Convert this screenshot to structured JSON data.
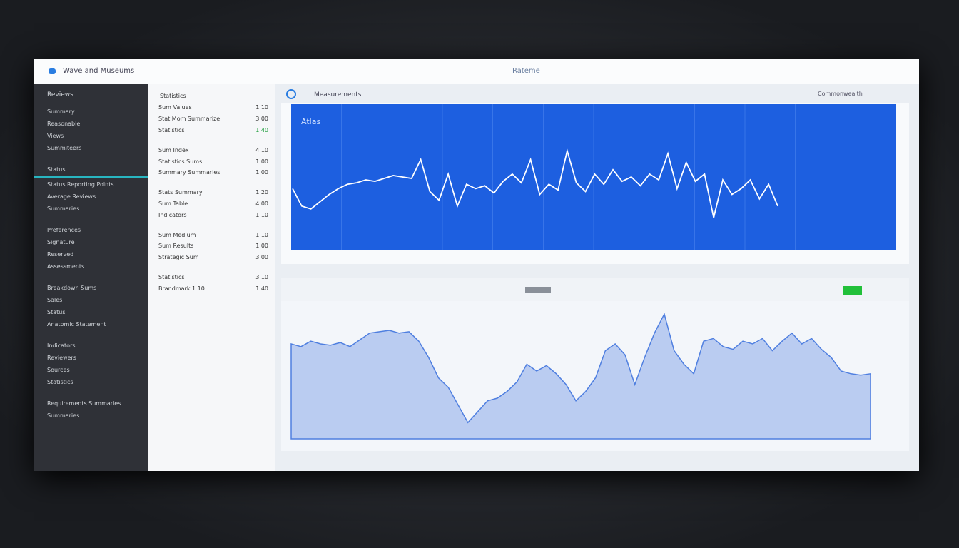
{
  "header": {
    "title": "Wave and Museums",
    "center": "Rateme"
  },
  "sidebar": {
    "heading": "Reviews",
    "items": [
      "Summary",
      "Reasonable",
      "Views",
      "Summiteers",
      "Status",
      "Status Reporting Points",
      "Average Reviews",
      "Summaries",
      "Preferences",
      "Signature",
      "Reserved",
      "Assessments",
      "Breakdown Sums",
      "Sales",
      "Status",
      "Anatomic Statement",
      "Indicators",
      "Reviewers",
      "Sources",
      "Statistics",
      "Requirements Summaries",
      "Summaries"
    ]
  },
  "list": {
    "heading": "Statistics",
    "rows": [
      [
        "Sum Values",
        "1.10"
      ],
      [
        "Stat Mom Summarize",
        "3.00"
      ],
      [
        "Statistics",
        "1.40"
      ],
      [
        "Sum Index",
        "4.10"
      ],
      [
        "Statistics Sums",
        "1.00"
      ],
      [
        "Summary Summaries",
        "1.00"
      ],
      [
        "Stats Summary",
        "1.20"
      ],
      [
        "Sum Table",
        "4.00"
      ],
      [
        "Indicators",
        "1.10"
      ],
      [
        "Sum Medium",
        "1.10"
      ],
      [
        "Sum Results",
        "1.00"
      ],
      [
        "Strategic Sum",
        "3.00"
      ],
      [
        "Statistics",
        "3.10"
      ],
      [
        "Brandmark 1.10",
        "1.40"
      ]
    ]
  },
  "main": {
    "title": "Measurements",
    "right_label": "Commonwealth"
  },
  "chart_data": [
    {
      "type": "line",
      "title": "Atlas",
      "color": "#ffffff",
      "ylim": [
        0,
        100
      ],
      "values": [
        42,
        30,
        28,
        33,
        38,
        42,
        45,
        46,
        48,
        47,
        49,
        51,
        50,
        49,
        62,
        40,
        34,
        52,
        30,
        45,
        42,
        44,
        39,
        47,
        52,
        46,
        62,
        38,
        45,
        41,
        68,
        46,
        40,
        52,
        45,
        55,
        47,
        50,
        44,
        52,
        48,
        66,
        42,
        60,
        47,
        52,
        22,
        48,
        38,
        42,
        48,
        35,
        45,
        30
      ]
    },
    {
      "type": "area",
      "color": "#4f7fe0",
      "ylim": [
        0,
        100
      ],
      "values": [
        70,
        68,
        72,
        70,
        69,
        71,
        68,
        73,
        78,
        79,
        80,
        78,
        79,
        72,
        60,
        45,
        38,
        25,
        12,
        20,
        28,
        30,
        35,
        42,
        55,
        50,
        54,
        48,
        40,
        28,
        35,
        45,
        65,
        70,
        62,
        40,
        60,
        78,
        92,
        65,
        55,
        48,
        72,
        74,
        68,
        66,
        72,
        70,
        74,
        65,
        72,
        78,
        70,
        74,
        66,
        60,
        50,
        48,
        47,
        48
      ]
    }
  ]
}
